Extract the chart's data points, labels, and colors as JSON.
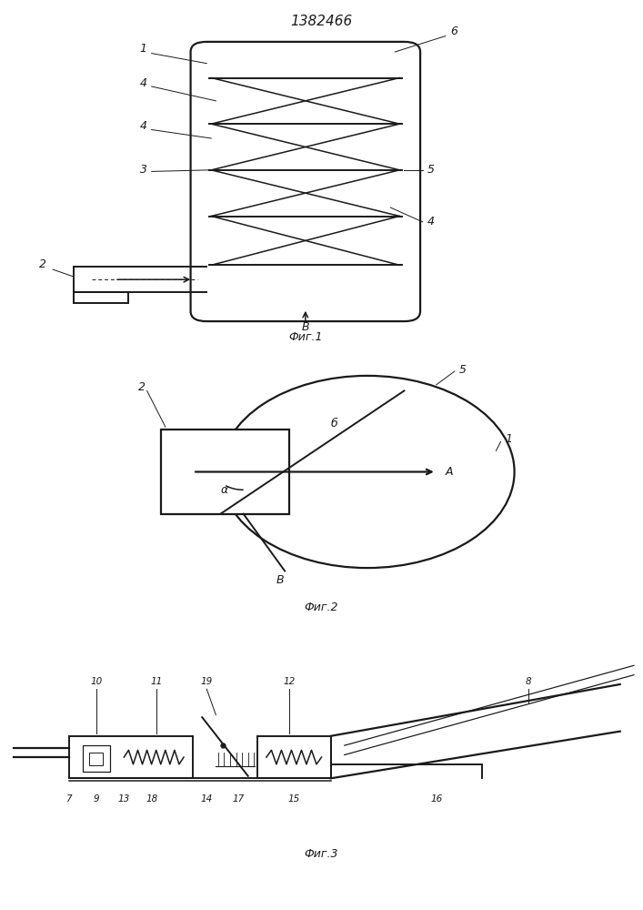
{
  "title": "1382466",
  "fig1_label": "Фиг.1",
  "fig2_label": "Фиг.2",
  "fig3_label": "Фиг.3",
  "line_color": "#1a1a1a",
  "bg_color": "#ffffff",
  "linewidth": 1.1
}
